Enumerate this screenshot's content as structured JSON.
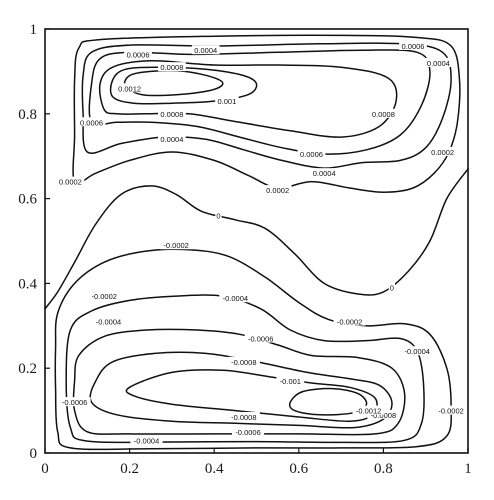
{
  "chart_data": {
    "type": "contour",
    "title": "",
    "xlabel": "",
    "ylabel": "",
    "xlim": [
      0,
      1
    ],
    "ylim": [
      0,
      1
    ],
    "x_ticks": [
      "0",
      "0.2",
      "0.4",
      "0.6",
      "0.8",
      "1"
    ],
    "y_ticks": [
      "0",
      "0.2",
      "0.4",
      "0.6",
      "0.8",
      "1"
    ],
    "grid": false,
    "line_color": "#111111",
    "contours": [
      {
        "level": "0",
        "label_at": [
          [
            0.41,
            0.56
          ],
          [
            0.82,
            0.39
          ]
        ],
        "points": [
          [
            0.0,
            0.34
          ],
          [
            0.03,
            0.38
          ],
          [
            0.07,
            0.45
          ],
          [
            0.12,
            0.54
          ],
          [
            0.18,
            0.61
          ],
          [
            0.25,
            0.63
          ],
          [
            0.31,
            0.61
          ],
          [
            0.37,
            0.57
          ],
          [
            0.45,
            0.55
          ],
          [
            0.52,
            0.53
          ],
          [
            0.59,
            0.47
          ],
          [
            0.66,
            0.4
          ],
          [
            0.74,
            0.375
          ],
          [
            0.8,
            0.38
          ],
          [
            0.86,
            0.43
          ],
          [
            0.91,
            0.5
          ],
          [
            0.95,
            0.6
          ],
          [
            1.0,
            0.67
          ]
        ]
      },
      {
        "level": "0.0002",
        "label_at": [
          [
            0.06,
            0.64
          ],
          [
            0.55,
            0.62
          ],
          [
            0.94,
            0.71
          ]
        ],
        "points": [
          [
            0.07,
            0.64
          ],
          [
            0.07,
            0.75
          ],
          [
            0.07,
            0.88
          ],
          [
            0.08,
            0.955
          ],
          [
            0.13,
            0.975
          ],
          [
            0.4,
            0.983
          ],
          [
            0.7,
            0.985
          ],
          [
            0.88,
            0.98
          ],
          [
            0.96,
            0.96
          ],
          [
            0.98,
            0.88
          ],
          [
            0.975,
            0.78
          ],
          [
            0.955,
            0.71
          ],
          [
            0.92,
            0.66
          ],
          [
            0.87,
            0.625
          ],
          [
            0.8,
            0.615
          ],
          [
            0.72,
            0.625
          ],
          [
            0.63,
            0.64
          ],
          [
            0.55,
            0.625
          ],
          [
            0.48,
            0.655
          ],
          [
            0.4,
            0.69
          ],
          [
            0.3,
            0.71
          ],
          [
            0.2,
            0.69
          ],
          [
            0.12,
            0.66
          ],
          [
            0.07,
            0.64
          ]
        ]
      },
      {
        "level": "0.0004",
        "label_at": [
          [
            0.38,
            0.95
          ],
          [
            0.93,
            0.92
          ],
          [
            0.66,
            0.66
          ],
          [
            0.3,
            0.74
          ]
        ],
        "points": [
          [
            0.1,
            0.71
          ],
          [
            0.09,
            0.8
          ],
          [
            0.09,
            0.89
          ],
          [
            0.11,
            0.945
          ],
          [
            0.2,
            0.962
          ],
          [
            0.4,
            0.96
          ],
          [
            0.65,
            0.965
          ],
          [
            0.85,
            0.965
          ],
          [
            0.94,
            0.945
          ],
          [
            0.96,
            0.88
          ],
          [
            0.94,
            0.79
          ],
          [
            0.9,
            0.72
          ],
          [
            0.84,
            0.69
          ],
          [
            0.75,
            0.685
          ],
          [
            0.66,
            0.672
          ],
          [
            0.56,
            0.69
          ],
          [
            0.47,
            0.715
          ],
          [
            0.38,
            0.74
          ],
          [
            0.28,
            0.745
          ],
          [
            0.18,
            0.73
          ],
          [
            0.1,
            0.71
          ]
        ]
      },
      {
        "level": "0.0006",
        "label_at": [
          [
            0.22,
            0.94
          ],
          [
            0.87,
            0.96
          ],
          [
            0.63,
            0.705
          ],
          [
            0.11,
            0.78
          ]
        ],
        "points": [
          [
            0.11,
            0.78
          ],
          [
            0.11,
            0.87
          ],
          [
            0.13,
            0.93
          ],
          [
            0.2,
            0.945
          ],
          [
            0.35,
            0.94
          ],
          [
            0.55,
            0.945
          ],
          [
            0.75,
            0.95
          ],
          [
            0.88,
            0.945
          ],
          [
            0.91,
            0.9
          ],
          [
            0.89,
            0.82
          ],
          [
            0.84,
            0.75
          ],
          [
            0.76,
            0.715
          ],
          [
            0.66,
            0.705
          ],
          [
            0.56,
            0.72
          ],
          [
            0.46,
            0.745
          ],
          [
            0.36,
            0.77
          ],
          [
            0.25,
            0.78
          ],
          [
            0.17,
            0.78
          ],
          [
            0.11,
            0.78
          ]
        ]
      },
      {
        "level": "0.0008",
        "label_at": [
          [
            0.3,
            0.91
          ],
          [
            0.8,
            0.8
          ],
          [
            0.3,
            0.8
          ]
        ],
        "points": [
          [
            0.14,
            0.81
          ],
          [
            0.13,
            0.87
          ],
          [
            0.16,
            0.91
          ],
          [
            0.25,
            0.925
          ],
          [
            0.4,
            0.915
          ],
          [
            0.55,
            0.915
          ],
          [
            0.7,
            0.91
          ],
          [
            0.81,
            0.885
          ],
          [
            0.83,
            0.83
          ],
          [
            0.79,
            0.77
          ],
          [
            0.7,
            0.745
          ],
          [
            0.58,
            0.76
          ],
          [
            0.46,
            0.78
          ],
          [
            0.34,
            0.8
          ],
          [
            0.24,
            0.8
          ],
          [
            0.17,
            0.8
          ],
          [
            0.14,
            0.81
          ]
        ]
      },
      {
        "level": "0.001",
        "label_at": [
          [
            0.43,
            0.83
          ]
        ],
        "points": [
          [
            0.16,
            0.84
          ],
          [
            0.16,
            0.88
          ],
          [
            0.19,
            0.905
          ],
          [
            0.27,
            0.91
          ],
          [
            0.38,
            0.905
          ],
          [
            0.47,
            0.89
          ],
          [
            0.5,
            0.87
          ],
          [
            0.48,
            0.845
          ],
          [
            0.4,
            0.83
          ],
          [
            0.3,
            0.825
          ],
          [
            0.21,
            0.825
          ],
          [
            0.16,
            0.84
          ]
        ]
      },
      {
        "level": "0.0012",
        "label_at": [
          [
            0.2,
            0.86
          ]
        ],
        "points": [
          [
            0.19,
            0.865
          ],
          [
            0.2,
            0.89
          ],
          [
            0.25,
            0.9
          ],
          [
            0.33,
            0.9
          ],
          [
            0.4,
            0.885
          ],
          [
            0.42,
            0.87
          ],
          [
            0.39,
            0.855
          ],
          [
            0.31,
            0.845
          ],
          [
            0.23,
            0.845
          ],
          [
            0.19,
            0.865
          ]
        ]
      },
      {
        "level": "-0.0002",
        "label_at": [
          [
            0.14,
            0.37
          ],
          [
            0.31,
            0.49
          ],
          [
            0.72,
            0.31
          ],
          [
            0.96,
            0.1
          ]
        ],
        "points": [
          [
            0.03,
            0.33
          ],
          [
            0.07,
            0.4
          ],
          [
            0.14,
            0.45
          ],
          [
            0.23,
            0.475
          ],
          [
            0.33,
            0.48
          ],
          [
            0.43,
            0.465
          ],
          [
            0.52,
            0.415
          ],
          [
            0.6,
            0.355
          ],
          [
            0.67,
            0.315
          ],
          [
            0.76,
            0.3
          ],
          [
            0.85,
            0.305
          ],
          [
            0.91,
            0.28
          ],
          [
            0.95,
            0.2
          ],
          [
            0.96,
            0.11
          ],
          [
            0.95,
            0.04
          ],
          [
            0.88,
            0.015
          ],
          [
            0.7,
            0.012
          ],
          [
            0.5,
            0.012
          ],
          [
            0.25,
            0.01
          ],
          [
            0.06,
            0.012
          ],
          [
            0.03,
            0.05
          ],
          [
            0.025,
            0.15
          ],
          [
            0.025,
            0.25
          ],
          [
            0.03,
            0.33
          ]
        ]
      },
      {
        "level": "-0.0004",
        "label_at": [
          [
            0.15,
            0.31
          ],
          [
            0.45,
            0.365
          ],
          [
            0.88,
            0.24
          ],
          [
            0.24,
            0.03
          ]
        ],
        "points": [
          [
            0.06,
            0.29
          ],
          [
            0.11,
            0.335
          ],
          [
            0.2,
            0.36
          ],
          [
            0.31,
            0.37
          ],
          [
            0.42,
            0.37
          ],
          [
            0.51,
            0.34
          ],
          [
            0.58,
            0.29
          ],
          [
            0.66,
            0.265
          ],
          [
            0.76,
            0.265
          ],
          [
            0.84,
            0.27
          ],
          [
            0.88,
            0.24
          ],
          [
            0.895,
            0.16
          ],
          [
            0.89,
            0.07
          ],
          [
            0.85,
            0.03
          ],
          [
            0.7,
            0.025
          ],
          [
            0.5,
            0.027
          ],
          [
            0.3,
            0.026
          ],
          [
            0.1,
            0.028
          ],
          [
            0.06,
            0.06
          ],
          [
            0.05,
            0.17
          ],
          [
            0.06,
            0.29
          ]
        ]
      },
      {
        "level": "-0.0006",
        "label_at": [
          [
            0.51,
            0.27
          ],
          [
            0.07,
            0.12
          ],
          [
            0.48,
            0.05
          ]
        ],
        "points": [
          [
            0.08,
            0.23
          ],
          [
            0.14,
            0.275
          ],
          [
            0.24,
            0.29
          ],
          [
            0.36,
            0.29
          ],
          [
            0.46,
            0.28
          ],
          [
            0.55,
            0.255
          ],
          [
            0.63,
            0.23
          ],
          [
            0.74,
            0.225
          ],
          [
            0.82,
            0.2
          ],
          [
            0.85,
            0.14
          ],
          [
            0.835,
            0.07
          ],
          [
            0.78,
            0.045
          ],
          [
            0.6,
            0.045
          ],
          [
            0.4,
            0.045
          ],
          [
            0.2,
            0.045
          ],
          [
            0.1,
            0.05
          ],
          [
            0.07,
            0.1
          ],
          [
            0.07,
            0.17
          ],
          [
            0.08,
            0.23
          ]
        ]
      },
      {
        "level": "-0.0008",
        "label_at": [
          [
            0.47,
            0.215
          ],
          [
            0.47,
            0.085
          ],
          [
            0.8,
            0.09
          ]
        ],
        "points": [
          [
            0.12,
            0.17
          ],
          [
            0.16,
            0.215
          ],
          [
            0.26,
            0.235
          ],
          [
            0.38,
            0.235
          ],
          [
            0.5,
            0.215
          ],
          [
            0.62,
            0.19
          ],
          [
            0.72,
            0.175
          ],
          [
            0.79,
            0.16
          ],
          [
            0.82,
            0.12
          ],
          [
            0.8,
            0.08
          ],
          [
            0.73,
            0.06
          ],
          [
            0.6,
            0.065
          ],
          [
            0.45,
            0.07
          ],
          [
            0.3,
            0.075
          ],
          [
            0.17,
            0.09
          ],
          [
            0.11,
            0.12
          ],
          [
            0.12,
            0.17
          ]
        ]
      },
      {
        "level": "-0.001",
        "label_at": [
          [
            0.58,
            0.17
          ]
        ],
        "points": [
          [
            0.2,
            0.155
          ],
          [
            0.3,
            0.19
          ],
          [
            0.42,
            0.195
          ],
          [
            0.53,
            0.18
          ],
          [
            0.63,
            0.165
          ],
          [
            0.72,
            0.155
          ],
          [
            0.78,
            0.13
          ],
          [
            0.775,
            0.09
          ],
          [
            0.72,
            0.075
          ],
          [
            0.6,
            0.085
          ],
          [
            0.45,
            0.1
          ],
          [
            0.3,
            0.115
          ],
          [
            0.21,
            0.135
          ],
          [
            0.2,
            0.155
          ]
        ]
      },
      {
        "level": "-0.0012",
        "label_at": [
          [
            0.765,
            0.1
          ]
        ],
        "points": [
          [
            0.58,
            0.12
          ],
          [
            0.61,
            0.145
          ],
          [
            0.68,
            0.152
          ],
          [
            0.74,
            0.14
          ],
          [
            0.76,
            0.115
          ],
          [
            0.73,
            0.095
          ],
          [
            0.65,
            0.09
          ],
          [
            0.59,
            0.1
          ],
          [
            0.58,
            0.12
          ]
        ]
      }
    ]
  }
}
